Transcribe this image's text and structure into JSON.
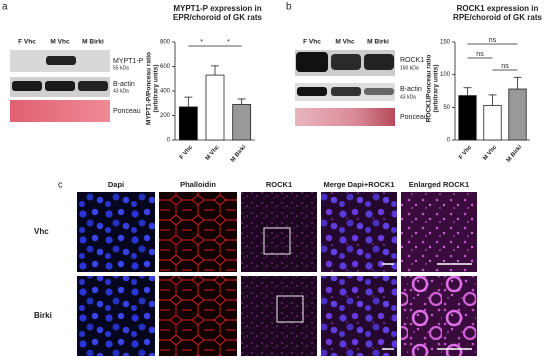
{
  "panel_labels": [
    "a",
    "b",
    "c"
  ],
  "blots": [
    {
      "lanes": [
        "F Vhc",
        "M Vhc",
        "M Birki"
      ],
      "rows": [
        {
          "label": "MYPT1-P",
          "size": "55 kDa"
        },
        {
          "label": "B-actin",
          "size": "43 kDa"
        },
        {
          "label": "Ponceau"
        }
      ]
    },
    {
      "lanes": [
        "F Vhc",
        "M Vhc",
        "M Birki"
      ],
      "rows": [
        {
          "label": "ROCK1",
          "size": "160 kDa"
        },
        {
          "label": "B-actin",
          "size": "43 kDa"
        },
        {
          "label": "Ponceau"
        }
      ]
    }
  ],
  "chart_data": [
    {
      "type": "bar",
      "title": "MYPT1-P expression in EPR/choroid of GK rats",
      "y_label": "MYPT1-P/Ponceau ratio (arbitrary units)",
      "categories": [
        "F Vhc",
        "M Vhc",
        "M Birki"
      ],
      "values": [
        270,
        530,
        290
      ],
      "errors": [
        80,
        75,
        45
      ],
      "colors": [
        "#000000",
        "#ffffff",
        "#999999"
      ],
      "ylim": [
        0,
        800
      ],
      "yticks": [
        0,
        200,
        400,
        600,
        800
      ],
      "annotations": [
        "*",
        "*"
      ]
    },
    {
      "type": "bar",
      "title": "ROCK1 expression in RPE/choroid of GK rats",
      "y_label": "ROCK1/Ponceau ratio (arbitrary units)",
      "categories": [
        "F Vhc",
        "M Vhc",
        "M Birki"
      ],
      "values": [
        68,
        53,
        78
      ],
      "errors": [
        12,
        16,
        18
      ],
      "colors": [
        "#000000",
        "#ffffff",
        "#999999"
      ],
      "ylim": [
        0,
        150
      ],
      "yticks": [
        0,
        50,
        100,
        150
      ],
      "annotations": [
        "ns",
        "ns",
        "ns"
      ]
    }
  ],
  "microscopy": {
    "columns": [
      "Dapi",
      "Phalloidin",
      "ROCK1",
      "Merge Dapi+ROCK1",
      "Enlarged ROCK1"
    ],
    "rows": [
      "Vhc",
      "Birki"
    ]
  }
}
